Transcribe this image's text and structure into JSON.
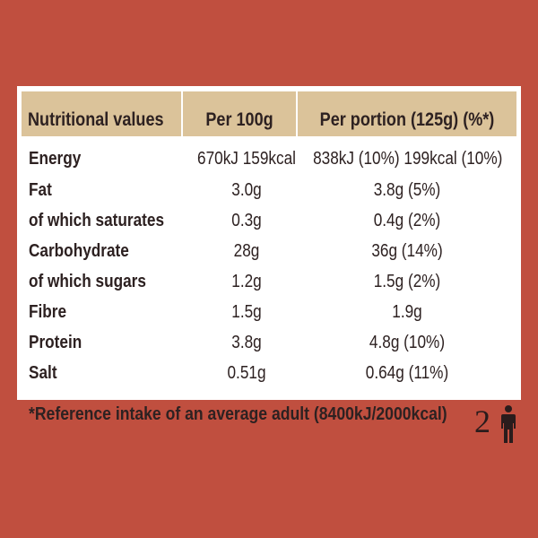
{
  "table": {
    "headers": [
      "Nutritional values",
      "Per 100g",
      "Per portion (125g) (%*)"
    ],
    "rows": [
      {
        "label": "Energy",
        "per100g": "670kJ 159kcal",
        "perPortion": "838kJ (10%) 199kcal (10%)"
      },
      {
        "label": "Fat",
        "per100g": "3.0g",
        "perPortion": "3.8g (5%)"
      },
      {
        "label": "of which saturates",
        "per100g": "0.3g",
        "perPortion": "0.4g (2%)"
      },
      {
        "label": "Carbohydrate",
        "per100g": "28g",
        "perPortion": "36g (14%)"
      },
      {
        "label": "of which sugars",
        "per100g": "1.2g",
        "perPortion": "1.5g (2%)"
      },
      {
        "label": "Fibre",
        "per100g": "1.5g",
        "perPortion": "1.9g"
      },
      {
        "label": "Protein",
        "per100g": "3.8g",
        "perPortion": "4.8g (10%)"
      },
      {
        "label": "Salt",
        "per100g": "0.51g",
        "perPortion": "0.64g (11%)"
      }
    ]
  },
  "footnote": "*Reference intake of an average adult (8400kJ/2000kcal)",
  "servings": {
    "count": "2",
    "icon": "person-icon"
  },
  "colors": {
    "background": "#c04f3f",
    "header": "#dbc39a",
    "panel": "#ffffff",
    "text": "#2d2121"
  }
}
